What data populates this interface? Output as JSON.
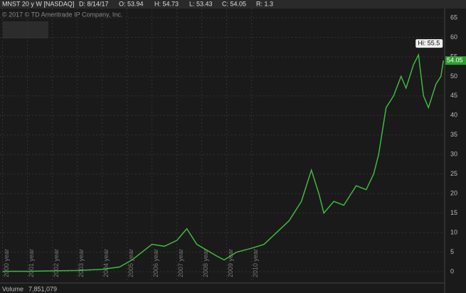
{
  "header": {
    "symbol": "MNST 20 y W [NASDAQ]",
    "date": "D: 8/14/17",
    "open": "O: 53.94",
    "high": "H: 54.73",
    "low": "L: 53.43",
    "close": "C: 54.05",
    "range": "R: 1.3"
  },
  "copyright": "© 2017 © TD Ameritrade IP Company, Inc.",
  "chart_data": {
    "type": "line",
    "color": "#3fb83f",
    "grid": true,
    "x": [
      2000.0,
      2001.0,
      2002.0,
      2003.0,
      2004.0,
      2004.7,
      2005.2,
      2005.6,
      2006.0,
      2006.5,
      2007.0,
      2007.4,
      2007.8,
      2008.2,
      2008.6,
      2008.9,
      2009.4,
      2010.0,
      2010.5,
      2011.0,
      2011.5,
      2012.0,
      2012.4,
      2012.7,
      2012.9,
      2013.3,
      2013.7,
      2014.2,
      2014.6,
      2014.9,
      2015.1,
      2015.4,
      2015.7,
      2016.0,
      2016.2,
      2016.5,
      2016.7,
      2016.9,
      2017.1,
      2017.4,
      2017.6,
      2017.7
    ],
    "values": [
      0.1,
      0.1,
      0.2,
      0.3,
      0.6,
      1.2,
      3,
      5,
      7,
      6.5,
      8,
      11,
      7,
      5.5,
      4,
      3,
      5,
      6,
      7,
      10,
      13,
      18,
      26,
      20,
      15,
      18,
      17,
      22,
      21,
      25,
      30,
      42,
      45,
      50,
      47,
      53,
      55.5,
      45,
      42,
      48,
      50,
      54.05
    ],
    "xlim": [
      1999.9,
      2017.75
    ],
    "ylim": [
      0,
      65
    ],
    "yticks": [
      0,
      5,
      10,
      15,
      20,
      25,
      30,
      35,
      40,
      45,
      50,
      55,
      60,
      65
    ],
    "xticks": [
      {
        "value": 2000,
        "label": "2000 year"
      },
      {
        "value": 2001,
        "label": "2001 year"
      },
      {
        "value": 2002,
        "label": "2002 year"
      },
      {
        "value": 2003,
        "label": "2003 year"
      },
      {
        "value": 2004,
        "label": "2004 year"
      },
      {
        "value": 2005,
        "label": "2005 year"
      },
      {
        "value": 2006,
        "label": "2006 year"
      },
      {
        "value": 2007,
        "label": "2007 year"
      },
      {
        "value": 2008,
        "label": "2008 year"
      },
      {
        "value": 2009,
        "label": "2009 year"
      },
      {
        "value": 2010,
        "label": "2010 year"
      }
    ],
    "hi_label": "Hi: 55.5",
    "price_label": "54.05",
    "volume_label": "Volume",
    "volume_value": "7,851,079"
  }
}
